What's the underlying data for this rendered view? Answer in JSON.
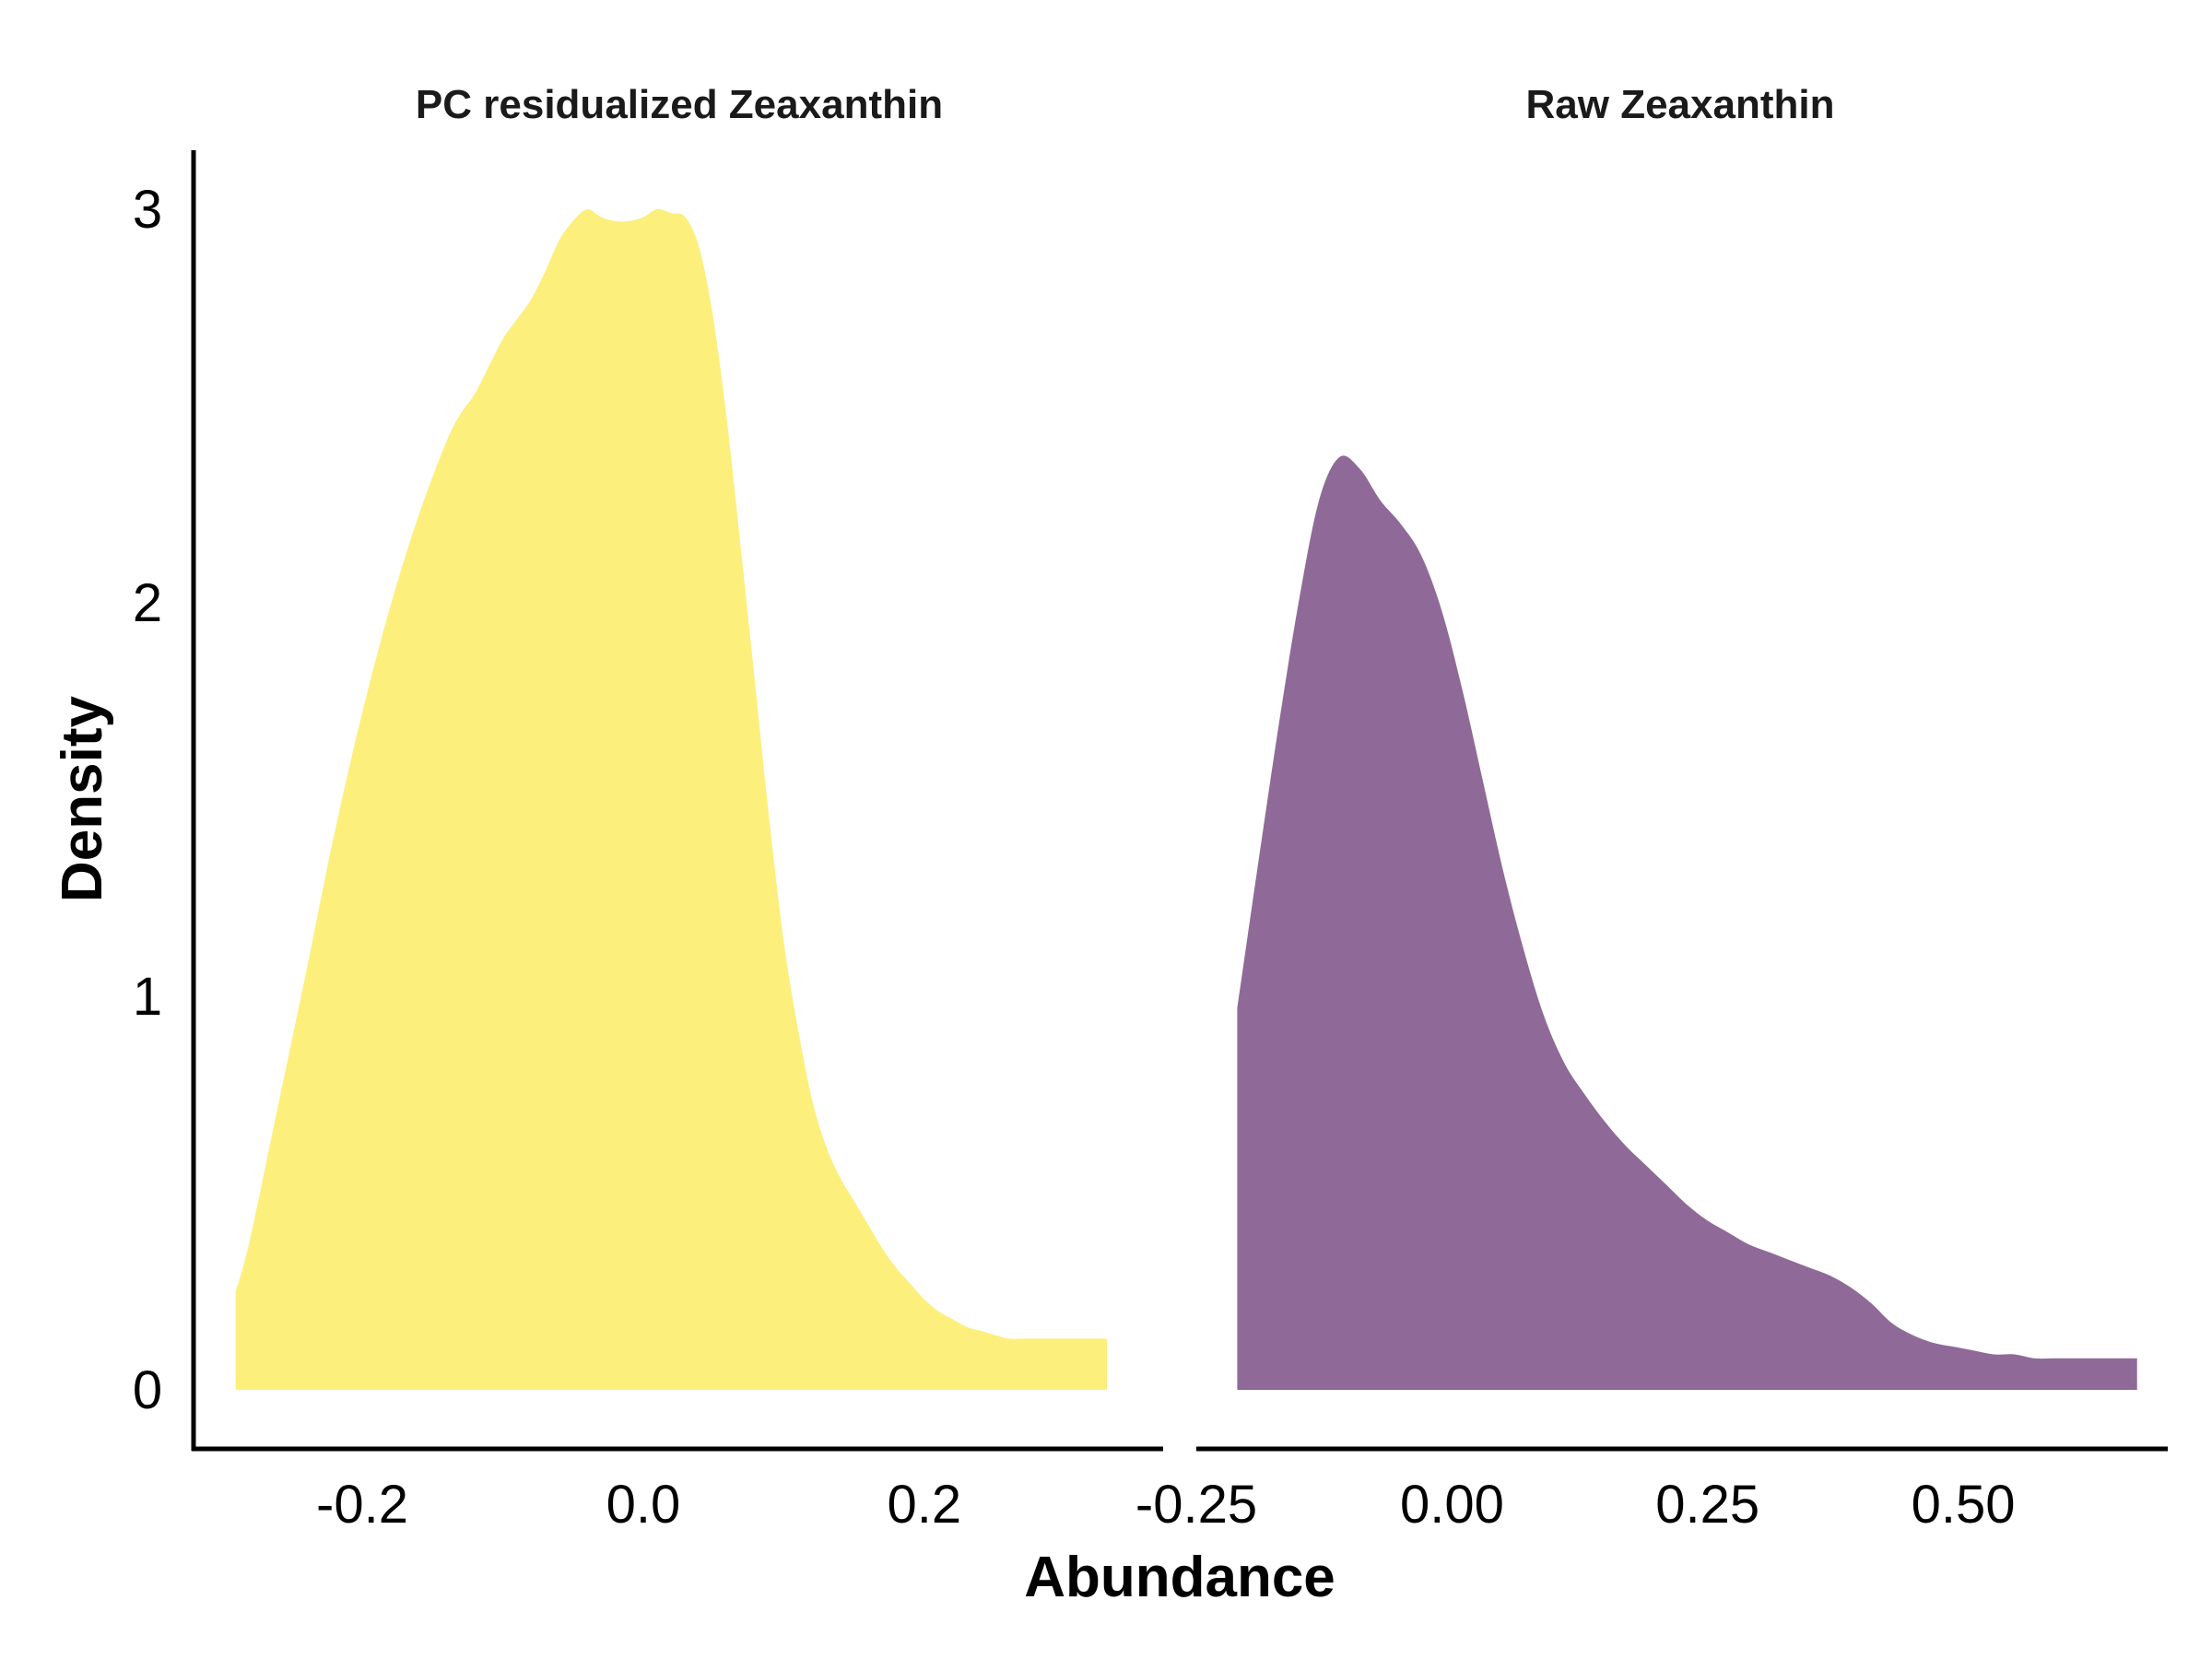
{
  "chart_data": {
    "type": "area",
    "xlabel": "Abundance",
    "ylabel": "Density",
    "ylim": [
      -0.15,
      3.15
    ],
    "yticks": [
      0,
      1,
      2,
      3
    ],
    "grid": false,
    "panels": [
      {
        "title": "PC residualized Zeaxanthin",
        "color": "#fdef7c",
        "xlim": [
          -0.32,
          0.37
        ],
        "xticks": [
          "-0.2",
          "0.0",
          "0.2"
        ],
        "xtick_values": [
          -0.2,
          0.0,
          0.2
        ],
        "series": [
          {
            "x": [
              -0.29,
              -0.28,
              -0.26,
              -0.24,
              -0.22,
              -0.2,
              -0.18,
              -0.16,
              -0.14,
              -0.13,
              -0.12,
              -0.11,
              -0.1,
              -0.09,
              -0.08,
              -0.07,
              -0.06,
              -0.05,
              -0.04,
              -0.03,
              -0.02,
              -0.01,
              0.0,
              0.01,
              0.02,
              0.03,
              0.04,
              0.05,
              0.06,
              0.07,
              0.08,
              0.09,
              0.1,
              0.11,
              0.12,
              0.13,
              0.14,
              0.15,
              0.16,
              0.17,
              0.18,
              0.19,
              0.2,
              0.21,
              0.22,
              0.23,
              0.24,
              0.25,
              0.26,
              0.27,
              0.28,
              0.3,
              0.32,
              0.33
            ],
            "y": [
              0.25,
              0.38,
              0.72,
              1.06,
              1.41,
              1.72,
              1.99,
              2.22,
              2.41,
              2.48,
              2.53,
              2.6,
              2.67,
              2.72,
              2.77,
              2.84,
              2.92,
              2.97,
              3.0,
              2.98,
              2.97,
              2.97,
              2.98,
              3.0,
              2.99,
              2.98,
              2.9,
              2.72,
              2.45,
              2.12,
              1.78,
              1.44,
              1.14,
              0.92,
              0.74,
              0.62,
              0.54,
              0.48,
              0.42,
              0.36,
              0.31,
              0.27,
              0.23,
              0.2,
              0.18,
              0.16,
              0.15,
              0.14,
              0.13,
              0.13,
              0.13,
              0.13,
              0.13,
              0.13
            ]
          }
        ]
      },
      {
        "title": "Raw Zeaxanthin",
        "color": "#8f6a98",
        "xlim": [
          -0.25,
          0.7
        ],
        "xticks": [
          "-0.25",
          "0.00",
          "0.25",
          "0.50"
        ],
        "xtick_values": [
          -0.25,
          0.0,
          0.25,
          0.5
        ],
        "series": [
          {
            "x": [
              -0.21,
              -0.19,
              -0.17,
              -0.15,
              -0.13,
              -0.11,
              -0.09,
              -0.07,
              -0.05,
              -0.03,
              -0.01,
              0.01,
              0.03,
              0.05,
              0.07,
              0.09,
              0.11,
              0.13,
              0.15,
              0.17,
              0.19,
              0.21,
              0.23,
              0.25,
              0.27,
              0.29,
              0.31,
              0.33,
              0.35,
              0.37,
              0.39,
              0.41,
              0.43,
              0.45,
              0.47,
              0.49,
              0.51,
              0.53,
              0.55,
              0.57,
              0.59,
              0.61,
              0.63,
              0.65,
              0.67
            ],
            "y": [
              0.97,
              1.33,
              1.68,
              2.0,
              2.26,
              2.37,
              2.34,
              2.26,
              2.2,
              2.12,
              1.98,
              1.78,
              1.55,
              1.32,
              1.12,
              0.95,
              0.83,
              0.75,
              0.68,
              0.62,
              0.57,
              0.52,
              0.47,
              0.43,
              0.4,
              0.37,
              0.35,
              0.33,
              0.31,
              0.29,
              0.26,
              0.22,
              0.17,
              0.14,
              0.12,
              0.11,
              0.1,
              0.09,
              0.09,
              0.08,
              0.08,
              0.08,
              0.08,
              0.08,
              0.08
            ]
          }
        ]
      }
    ]
  }
}
